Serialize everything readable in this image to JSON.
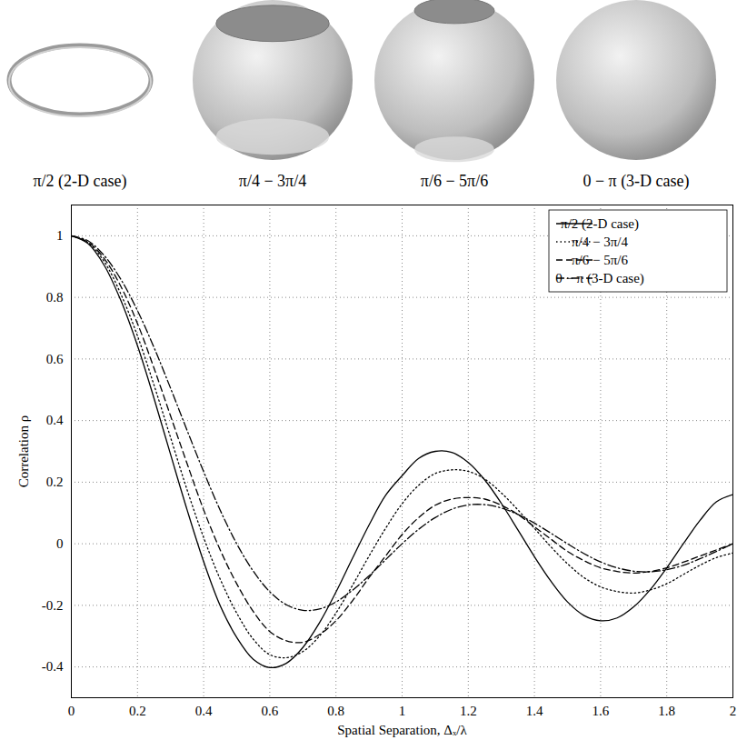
{
  "chart_data": {
    "type": "line",
    "xlabel": "Spatial Separation, Δₓ/λ",
    "ylabel": "Correlation ρ",
    "x": [
      0,
      0.05,
      0.1,
      0.15,
      0.2,
      0.25,
      0.3,
      0.35,
      0.4,
      0.45,
      0.5,
      0.55,
      0.6,
      0.65,
      0.7,
      0.75,
      0.8,
      0.85,
      0.9,
      0.95,
      1,
      1.05,
      1.1,
      1.15,
      1.2,
      1.25,
      1.3,
      1.35,
      1.4,
      1.45,
      1.5,
      1.55,
      1.6,
      1.65,
      1.7,
      1.75,
      1.8,
      1.85,
      1.9,
      1.95,
      2
    ],
    "series": [
      {
        "name": "π/2 (2-D case)",
        "color": "#000000",
        "line_style": "solid",
        "values": [
          1,
          0.975,
          0.903,
          0.789,
          0.643,
          0.472,
          0.29,
          0.11,
          -0.058,
          -0.201,
          -0.304,
          -0.375,
          -0.402,
          -0.388,
          -0.337,
          -0.257,
          -0.157,
          -0.047,
          0.061,
          0.157,
          0.221,
          0.277,
          0.3,
          0.297,
          0.264,
          0.207,
          0.131,
          0.045,
          -0.042,
          -0.122,
          -0.189,
          -0.233,
          -0.25,
          -0.241,
          -0.205,
          -0.149,
          -0.078,
          0,
          0.075,
          0.136,
          0.16
        ]
      },
      {
        "name": "π/4 − 3π/4",
        "color": "#000000",
        "line_style": "dotted",
        "values": [
          1,
          0.978,
          0.915,
          0.81,
          0.675,
          0.515,
          0.345,
          0.175,
          0.02,
          -0.115,
          -0.225,
          -0.31,
          -0.36,
          -0.37,
          -0.35,
          -0.3,
          -0.225,
          -0.135,
          -0.04,
          0.05,
          0.13,
          0.19,
          0.228,
          0.24,
          0.235,
          0.21,
          0.165,
          0.11,
          0.05,
          -0.01,
          -0.065,
          -0.11,
          -0.14,
          -0.155,
          -0.16,
          -0.15,
          -0.13,
          -0.1,
          -0.07,
          -0.045,
          -0.03
        ]
      },
      {
        "name": "π/6 − 5π/6",
        "color": "#000000",
        "line_style": "dashed",
        "values": [
          1,
          0.98,
          0.925,
          0.835,
          0.715,
          0.57,
          0.415,
          0.26,
          0.11,
          -0.02,
          -0.13,
          -0.22,
          -0.285,
          -0.315,
          -0.32,
          -0.295,
          -0.25,
          -0.185,
          -0.11,
          -0.04,
          0.03,
          0.085,
          0.125,
          0.145,
          0.15,
          0.145,
          0.125,
          0.095,
          0.055,
          0.015,
          -0.025,
          -0.055,
          -0.078,
          -0.09,
          -0.095,
          -0.09,
          -0.078,
          -0.06,
          -0.04,
          -0.02,
          0
        ]
      },
      {
        "name": "0 − π (3-D case)",
        "color": "#000000",
        "line_style": "dashdot",
        "values": [
          1,
          0.984,
          0.935,
          0.858,
          0.757,
          0.637,
          0.505,
          0.368,
          0.234,
          0.109,
          0,
          -0.089,
          -0.156,
          -0.198,
          -0.216,
          -0.212,
          -0.189,
          -0.151,
          -0.104,
          -0.052,
          0,
          0.047,
          0.085,
          0.112,
          0.126,
          0.127,
          0.116,
          0.095,
          0.067,
          0.034,
          0,
          -0.032,
          -0.059,
          -0.078,
          -0.089,
          -0.091,
          -0.084,
          -0.07,
          -0.049,
          -0.025,
          0
        ]
      }
    ],
    "xlim": [
      0,
      2
    ],
    "ylim": [
      -0.5,
      1.1
    ],
    "xticks": [
      0,
      0.2,
      0.4,
      0.6,
      0.8,
      1,
      1.2,
      1.4,
      1.6,
      1.8,
      2
    ],
    "yticks": [
      -0.4,
      -0.2,
      0,
      0.2,
      0.4,
      0.6,
      0.8,
      1
    ],
    "grid": true,
    "legend": "top-right"
  }
}
